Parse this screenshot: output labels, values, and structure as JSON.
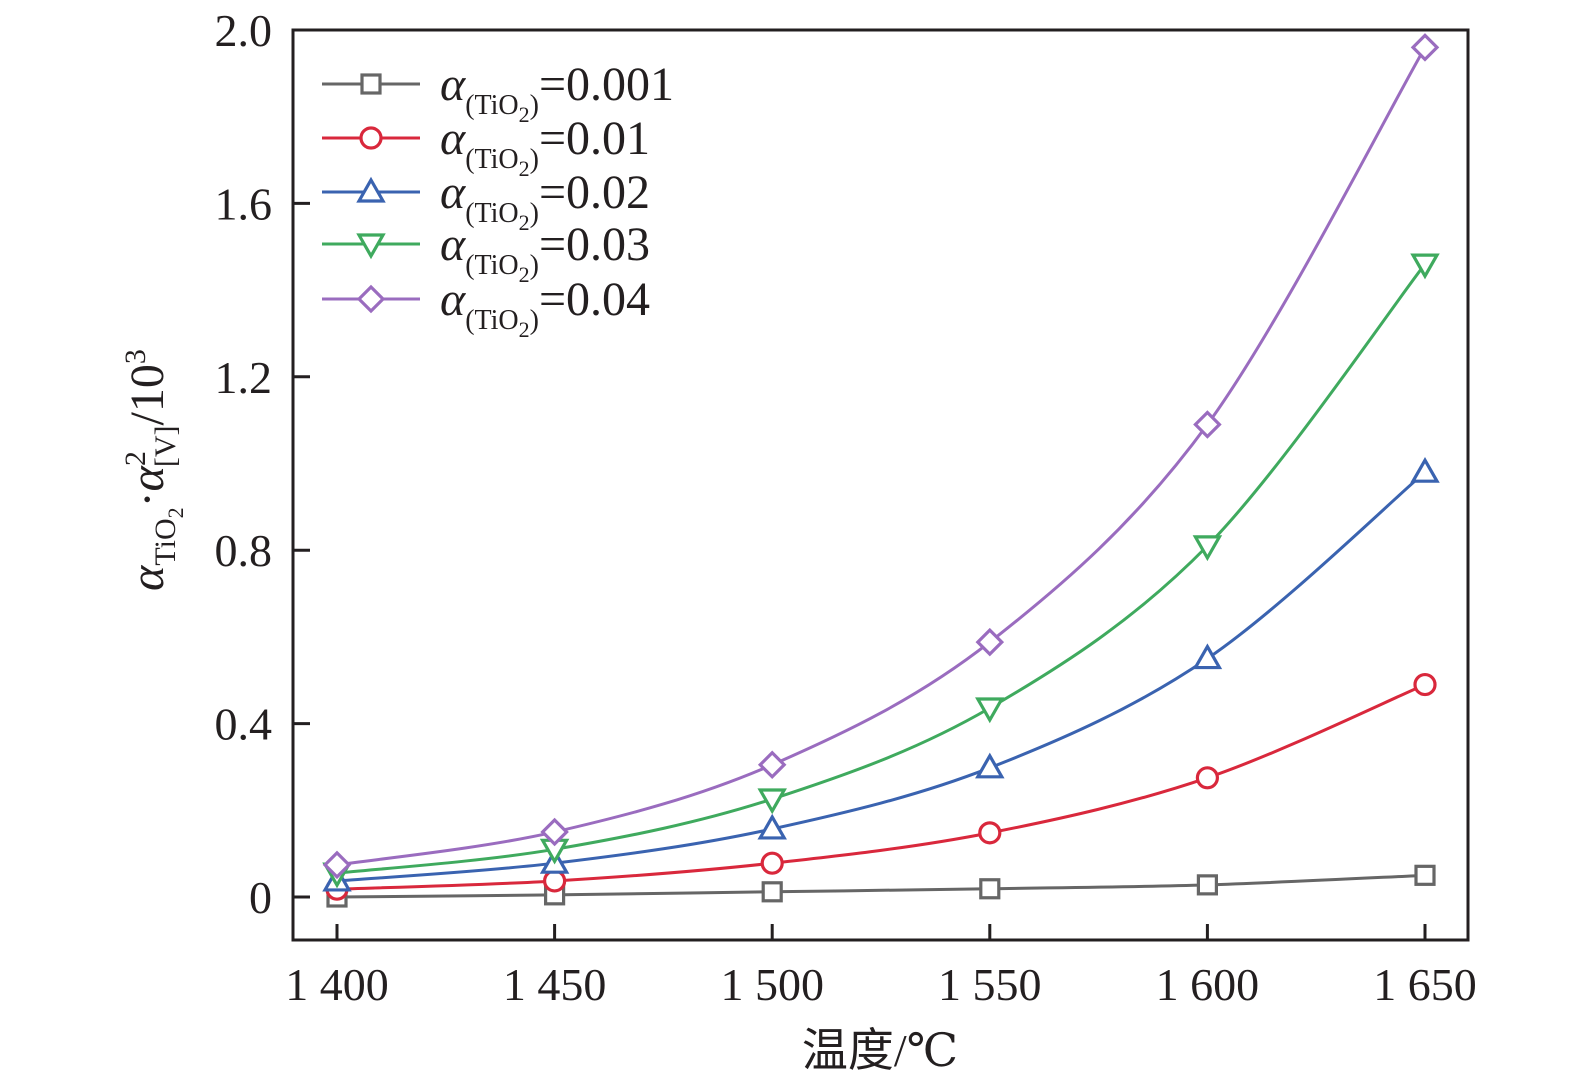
{
  "chart_data": {
    "type": "line",
    "title": "",
    "xlabel": "温度/℃",
    "ylabel": {
      "base": "α",
      "sub1": "TiO",
      "sub1_index": "2",
      "dot": "·",
      "base2": "α",
      "sup2": "2",
      "sub2": "[V]",
      "suffix": "/10",
      "suffix_sup": "3"
    },
    "x": [
      1400,
      1450,
      1500,
      1550,
      1600,
      1650
    ],
    "x_tick_labels": [
      "1 400",
      "1 450",
      "1 500",
      "1 550",
      "1 600",
      "1 650"
    ],
    "y_ticks": [
      0,
      0.4,
      0.8,
      1.2,
      1.6,
      2.0
    ],
    "y_tick_labels": [
      "0",
      "0.4",
      "0.8",
      "1.2",
      "1.6",
      "2.0"
    ],
    "xlim": [
      1390,
      1660
    ],
    "ylim": [
      -0.1,
      2.0
    ],
    "grid": false,
    "legend_position": "top-left",
    "series": [
      {
        "name": "α(TiO2)=0.001",
        "legend_base": "α",
        "legend_sub": "(TiO",
        "legend_sub_index": "2",
        "legend_sub_close": ")",
        "legend_value": "=0.001",
        "marker": "square",
        "color": "#666666",
        "values": [
          0.0,
          0.005,
          0.012,
          0.019,
          0.028,
          0.05
        ]
      },
      {
        "name": "α(TiO2)=0.01",
        "legend_base": "α",
        "legend_sub": "(TiO",
        "legend_sub_index": "2",
        "legend_sub_close": ")",
        "legend_value": "=0.01",
        "marker": "circle",
        "color": "#d9283c",
        "values": [
          0.018,
          0.037,
          0.078,
          0.148,
          0.275,
          0.49
        ]
      },
      {
        "name": "α(TiO2)=0.02",
        "legend_base": "α",
        "legend_sub": "(TiO",
        "legend_sub_index": "2",
        "legend_sub_close": ")",
        "legend_value": "=0.02",
        "marker": "triangle-up",
        "color": "#3a63b0",
        "values": [
          0.037,
          0.078,
          0.157,
          0.298,
          0.55,
          0.98
        ]
      },
      {
        "name": "α(TiO2)=0.03",
        "legend_base": "α",
        "legend_sub": "(TiO",
        "legend_sub_index": "2",
        "legend_sub_close": ")",
        "legend_value": "=0.03",
        "marker": "triangle-down",
        "color": "#3faa5e",
        "values": [
          0.055,
          0.11,
          0.226,
          0.436,
          0.81,
          1.46
        ]
      },
      {
        "name": "α(TiO2)=0.04",
        "legend_base": "α",
        "legend_sub": "(TiO",
        "legend_sub_index": "2",
        "legend_sub_close": ")",
        "legend_value": "=0.04",
        "marker": "diamond",
        "color": "#9a6cbf",
        "values": [
          0.074,
          0.15,
          0.305,
          0.588,
          1.09,
          1.96
        ]
      }
    ]
  }
}
